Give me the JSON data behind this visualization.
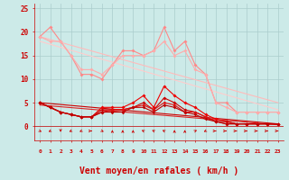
{
  "background_color": "#cceae8",
  "grid_color": "#aacccc",
  "xlabel": "Vent moyen/en rafales ( km/h )",
  "xlabel_color": "#cc0000",
  "xlabel_fontsize": 7,
  "ytick_labels": [
    "0",
    "5",
    "10",
    "15",
    "20",
    "25"
  ],
  "ytick_values": [
    0,
    5,
    10,
    15,
    20,
    25
  ],
  "xlim": [
    -0.5,
    23.5
  ],
  "ylim": [
    -1,
    27
  ],
  "plot_ylim": [
    0,
    26
  ],
  "series_light": [
    {
      "y": [
        19,
        21,
        18,
        15,
        11,
        11,
        10,
        13,
        16,
        16,
        15,
        16,
        21,
        16,
        18,
        13,
        11,
        5,
        5,
        3,
        3,
        3,
        3,
        3
      ],
      "color": "#ff8888",
      "linewidth": 0.8,
      "marker": "D",
      "markersize": 2.0
    },
    {
      "y": [
        19,
        18,
        18,
        15,
        12,
        12,
        11,
        13,
        15,
        15,
        15,
        16,
        18,
        15,
        16,
        12,
        11,
        5,
        4,
        3,
        3,
        3,
        3,
        3
      ],
      "color": "#ffaaaa",
      "linewidth": 0.8,
      "marker": "D",
      "markersize": 2.0
    }
  ],
  "trend_light": [
    {
      "start_y": 19,
      "end_y": 5,
      "color": "#ffbbbb",
      "linewidth": 0.8
    },
    {
      "start_y": 18,
      "end_y": 3.5,
      "color": "#ffcccc",
      "linewidth": 0.8
    }
  ],
  "series_dark": [
    {
      "y": [
        5,
        4,
        3,
        2.5,
        2,
        2,
        4,
        4,
        4,
        5,
        6.5,
        4,
        8.5,
        6.5,
        5,
        4,
        2.5,
        1.5,
        1,
        0.5,
        0.5,
        0.5,
        0.5,
        0.5
      ],
      "color": "#ee0000",
      "linewidth": 0.8,
      "marker": "D",
      "markersize": 2.0
    },
    {
      "y": [
        5,
        4,
        3,
        2.5,
        2,
        2,
        3.5,
        3.5,
        3.5,
        4,
        5,
        3.5,
        6,
        5,
        3.5,
        3,
        2,
        1,
        1,
        0.5,
        0.5,
        0.5,
        0.5,
        0.5
      ],
      "color": "#cc0000",
      "linewidth": 0.8,
      "marker": "D",
      "markersize": 2.0
    },
    {
      "y": [
        5,
        4,
        3,
        2.5,
        2,
        2,
        3,
        3.5,
        3.5,
        4,
        4.5,
        3.5,
        5,
        4.5,
        3,
        3,
        2,
        1,
        0.5,
        0.5,
        0.5,
        0.5,
        0.5,
        0.5
      ],
      "color": "#dd1111",
      "linewidth": 0.8,
      "marker": "D",
      "markersize": 2.0
    },
    {
      "y": [
        5,
        4,
        3,
        2.5,
        2,
        2,
        3,
        3,
        3,
        4,
        4,
        3,
        4.5,
        4,
        3,
        2.5,
        1.5,
        1,
        0.5,
        0.5,
        0.5,
        0.5,
        0.5,
        0.5
      ],
      "color": "#bb0000",
      "linewidth": 0.8,
      "marker": "D",
      "markersize": 1.8
    }
  ],
  "trend_dark": [
    {
      "start_y": 5,
      "end_y": 0.5,
      "color": "#cc0000",
      "linewidth": 0.8
    },
    {
      "start_y": 4.5,
      "end_y": 0.3,
      "color": "#dd2222",
      "linewidth": 0.8
    }
  ],
  "wind_angles": [
    45,
    315,
    0,
    315,
    315,
    90,
    45,
    180,
    180,
    180,
    225,
    225,
    225,
    180,
    180,
    135,
    315,
    90,
    90,
    90,
    90,
    90,
    90,
    90
  ],
  "wind_color": "#cc0000"
}
